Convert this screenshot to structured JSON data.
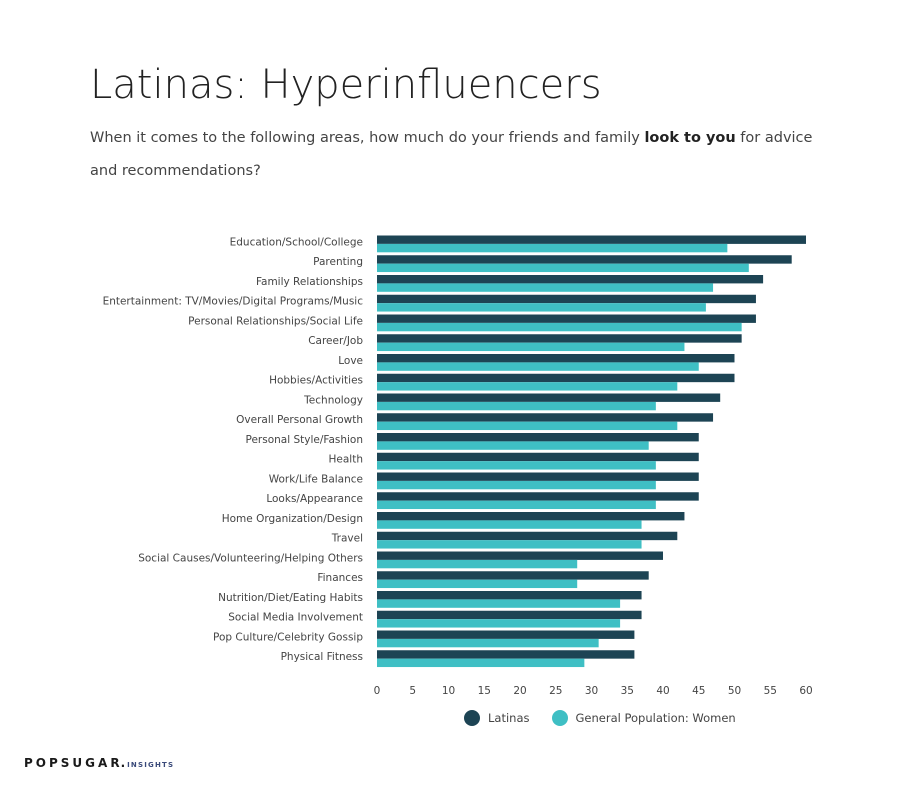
{
  "title": "Latinas: Hyperinfluencers",
  "subtitle": {
    "before": "When it comes to the following areas, how much do your friends and family ",
    "bold": "look to you",
    "after": " for advice and recommendations?"
  },
  "brand": {
    "name": "POPSUGAR",
    "dot": ".",
    "sub": "INSIGHTS"
  },
  "colors": {
    "latinas": "#1d4454",
    "general": "#3fbfc4"
  },
  "chart_data": {
    "type": "bar",
    "orientation": "horizontal",
    "categories": [
      "Education/School/College",
      "Parenting",
      "Family Relationships",
      "Entertainment: TV/Movies/Digital Programs/Music",
      "Personal Relationships/Social Life",
      "Career/Job",
      "Love",
      "Hobbies/Activities",
      "Technology",
      "Overall Personal Growth",
      "Personal Style/Fashion",
      "Health",
      "Work/Life Balance",
      "Looks/Appearance",
      "Home Organization/Design",
      "Travel",
      "Social Causes/Volunteering/Helping Others",
      "Finances",
      "Nutrition/Diet/Eating Habits",
      "Social Media Involvement",
      "Pop Culture/Celebrity Gossip",
      "Physical Fitness"
    ],
    "series": [
      {
        "name": "Latinas",
        "color": "#1d4454",
        "values": [
          60,
          58,
          54,
          53,
          53,
          51,
          50,
          50,
          48,
          47,
          45,
          45,
          45,
          45,
          43,
          42,
          40,
          38,
          37,
          37,
          36,
          36
        ]
      },
      {
        "name": "General Population: Women",
        "color": "#3fbfc4",
        "values": [
          49,
          52,
          47,
          46,
          51,
          43,
          45,
          42,
          39,
          42,
          38,
          39,
          39,
          39,
          37,
          37,
          28,
          28,
          34,
          34,
          31,
          29
        ]
      }
    ],
    "xlim": [
      0,
      60
    ],
    "xticks": [
      0,
      5,
      10,
      15,
      20,
      25,
      30,
      35,
      40,
      45,
      50,
      55,
      60
    ],
    "legend_position": "bottom",
    "grid": false
  }
}
